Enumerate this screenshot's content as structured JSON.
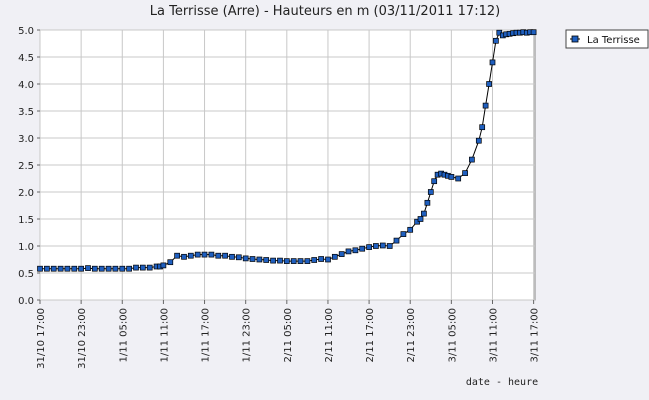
{
  "chart_data": {
    "type": "line",
    "title": "La Terrisse (Arre) - Hauteurs en m (03/11/2011 17:12)",
    "xlabel": "date - heure",
    "ylabel": "",
    "ylim": [
      0,
      5.0
    ],
    "yticks": [
      "0.0",
      "0.5",
      "1.0",
      "1.5",
      "2.0",
      "2.5",
      "3.0",
      "3.5",
      "4.0",
      "4.5",
      "5.0"
    ],
    "xticks": [
      "31/10 17:00",
      "31/10 23:00",
      "1/11 05:00",
      "1/11 11:00",
      "1/11 17:00",
      "1/11 23:00",
      "2/11 05:00",
      "2/11 11:00",
      "2/11 17:00",
      "2/11 23:00",
      "3/11 05:00",
      "3/11 11:00",
      "3/11 17:00"
    ],
    "xlim_hours": [
      0,
      72.2
    ],
    "grid": true,
    "legend_position": "top-right",
    "colors": {
      "series": "#1f5fbf",
      "line": "#000000",
      "grid": "#c8c8c8",
      "background": "#ffffff"
    },
    "series": [
      {
        "name": "La Terrisse",
        "x": [
          0,
          1,
          2,
          3,
          4,
          5,
          6,
          7,
          8,
          9,
          10,
          11,
          12,
          13,
          14,
          15,
          16,
          17,
          17.5,
          18,
          19,
          20,
          21,
          22,
          23,
          24,
          25,
          26,
          27,
          28,
          29,
          30,
          31,
          32,
          33,
          34,
          35,
          36,
          37,
          38,
          39,
          40,
          41,
          42,
          43,
          44,
          45,
          46,
          47,
          48,
          49,
          50,
          51,
          52,
          53,
          54,
          55,
          55.5,
          56,
          56.5,
          57,
          57.5,
          58,
          58.5,
          59,
          59.5,
          60,
          61,
          62,
          63,
          64,
          64.5,
          65,
          65.5,
          66,
          66.5,
          67,
          67.5,
          68,
          68.5,
          69,
          69.5,
          70,
          70.5,
          71,
          71.5,
          72
        ],
        "values": [
          0.58,
          0.58,
          0.58,
          0.58,
          0.58,
          0.58,
          0.58,
          0.59,
          0.58,
          0.58,
          0.58,
          0.58,
          0.58,
          0.58,
          0.6,
          0.6,
          0.6,
          0.62,
          0.62,
          0.64,
          0.7,
          0.82,
          0.8,
          0.82,
          0.84,
          0.84,
          0.84,
          0.82,
          0.82,
          0.8,
          0.79,
          0.77,
          0.76,
          0.75,
          0.74,
          0.73,
          0.73,
          0.72,
          0.72,
          0.72,
          0.72,
          0.74,
          0.76,
          0.75,
          0.8,
          0.85,
          0.9,
          0.92,
          0.95,
          0.98,
          1.0,
          1.01,
          1.0,
          1.1,
          1.22,
          1.3,
          1.45,
          1.5,
          1.6,
          1.8,
          2.0,
          2.2,
          2.32,
          2.34,
          2.32,
          2.3,
          2.28,
          2.25,
          2.35,
          2.6,
          2.95,
          3.2,
          3.6,
          4.0,
          4.4,
          4.8,
          4.95,
          4.9,
          4.92,
          4.93,
          4.94,
          4.95,
          4.95,
          4.96,
          4.95,
          4.96,
          4.96
        ]
      }
    ]
  },
  "legend": {
    "label": "La Terrisse"
  }
}
